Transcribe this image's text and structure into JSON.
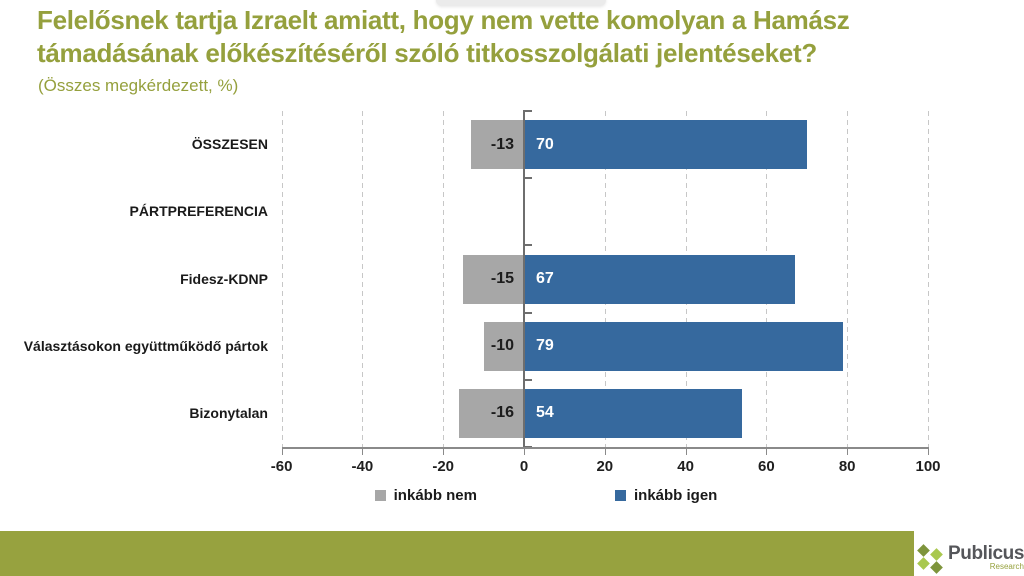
{
  "slide": {
    "title": "Felelősnek tartja Izraelt amiatt, hogy nem vette komolyan a Hamász\ntámadásának előkészítéséről szóló titkosszolgálati jelentéseket?",
    "subtitle": "(Összes megkérdezett, %)"
  },
  "chart_data": {
    "type": "bar",
    "orientation": "horizontal",
    "title": "Felelősnek tartja Izraelt amiatt, hogy nem vette komolyan a Hamász támadásának előkészítéséről szóló titkosszolgálati jelentéseket?",
    "subtitle": "(Összes megkérdezett, %)",
    "categories": [
      "ÖSSZESEN",
      "PÁRTPREFERENCIA",
      "Fidesz-KDNP",
      "Választásokon együttműködő pártok",
      "Bizonytalan"
    ],
    "series": [
      {
        "name": "inkább nem",
        "color": "#a7a7a7",
        "values": [
          -13,
          null,
          -15,
          -10,
          -16
        ]
      },
      {
        "name": "inkább igen",
        "color": "#36699e",
        "values": [
          70,
          null,
          67,
          79,
          54
        ]
      }
    ],
    "xlim": [
      -60,
      100
    ],
    "x_ticks": [
      -60,
      -40,
      -20,
      0,
      20,
      40,
      60,
      80,
      100
    ],
    "grid": "vertical-dashed",
    "legend_position": "bottom",
    "value_labels": true
  },
  "colors": {
    "title": "#95a03d",
    "subtitle": "#95a03d",
    "bar_negative": "#a7a7a7",
    "bar_positive": "#36699e",
    "footer_accent": "#97a23f",
    "logo_green_light": "#a9c84f",
    "logo_green_dark": "#7e943c"
  },
  "footer": {
    "brand": "Publicus",
    "brand_sub": "Research"
  }
}
